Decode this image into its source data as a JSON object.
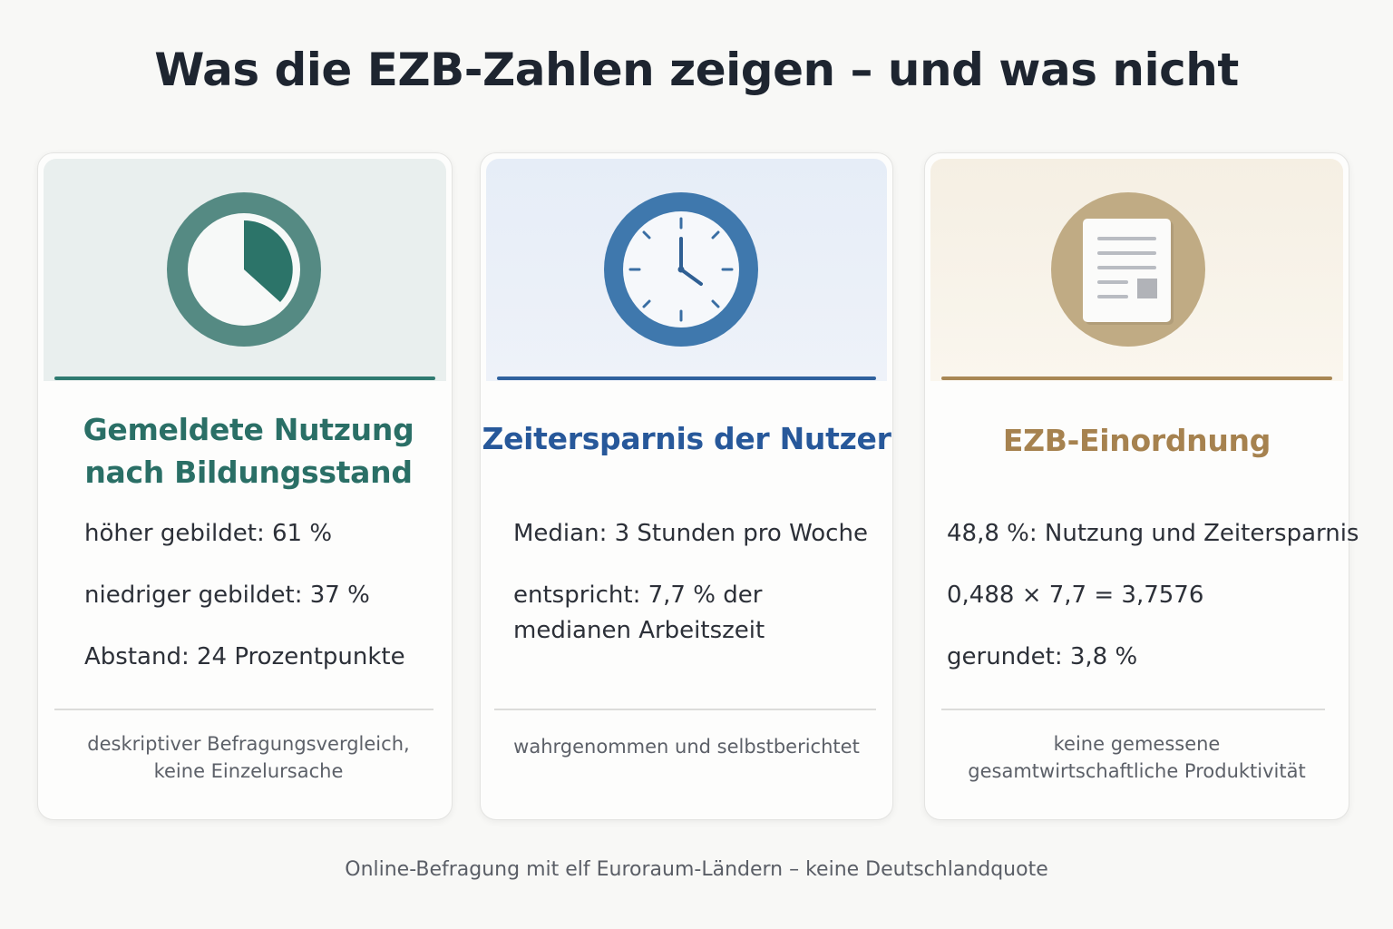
{
  "title": "Was die EZB-Zahlen zeigen – und was nicht",
  "colors": {
    "teal": "#2f7a70",
    "blue": "#2f619e",
    "gold": "#a88754"
  },
  "cards": [
    {
      "icon": "pie-chart-icon",
      "title_line1": "Gemeldete Nutzung",
      "title_line2": "nach Bildungsstand",
      "facts": [
        "höher gebildet: 61 %",
        "niedriger gebildet: 37 %",
        "Abstand: 24 Prozentpunkte"
      ],
      "note_line1": "deskriptiver Befragungsvergleich,",
      "note_line2": "keine Einzelursache"
    },
    {
      "icon": "clock-icon",
      "title_line1": "Zeitersparnis der Nutzer",
      "facts": [
        "Median: 3 Stunden pro Woche",
        "entspricht: 7,7 % der",
        "medianen Arbeitszeit"
      ],
      "note_line1": "wahrgenommen und selbstberichtet"
    },
    {
      "icon": "document-icon",
      "title_line1": "EZB-Einordnung",
      "facts": [
        "48,8 %: Nutzung und Zeitersparnis",
        "0,488 × 7,7 = 3,7576",
        "gerundet: 3,8 %"
      ],
      "note_line1": "keine gemessene",
      "note_line2": "gesamtwirtschaftliche Produktivität"
    }
  ],
  "footer": "Online-Befragung mit elf Euroraum-Ländern – keine Deutschlandquote"
}
